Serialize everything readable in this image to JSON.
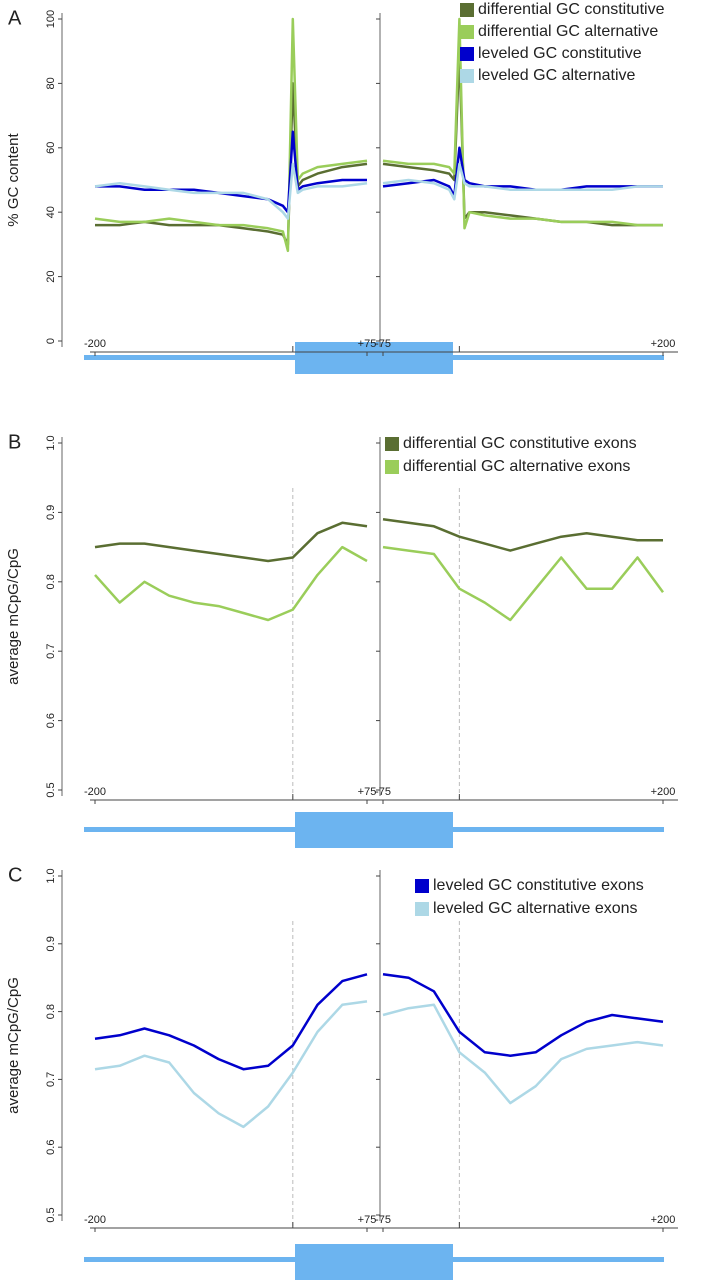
{
  "chart_data": [
    {
      "type": "line",
      "panel_label": "A",
      "ylabel": "% GC content",
      "ylim": [
        0,
        100
      ],
      "yticks": [
        0,
        20,
        40,
        60,
        80,
        100
      ],
      "legend": "upper right",
      "series": [
        {
          "name": "differential GC constitutive",
          "color": "#5a6e32"
        },
        {
          "name": "differential GC alternative",
          "color": "#9acd5a"
        },
        {
          "name": "leveled GC constitutive",
          "color": "#0000cc"
        },
        {
          "name": "leveled GC alternative",
          "color": "#add8e6"
        }
      ],
      "subplots": [
        {
          "xlim": [
            -200,
            75
          ],
          "xticks": [
            -200,
            {
              "value": 75,
              "label": "+75"
            }
          ],
          "x": [
            -200,
            -175,
            -150,
            -125,
            -100,
            -75,
            -50,
            -25,
            -10,
            -5,
            0,
            5,
            10,
            25,
            50,
            75
          ],
          "values": [
            [
              36,
              36,
              37,
              36,
              36,
              36,
              35,
              34,
              33,
              30,
              80,
              48,
              50,
              52,
              54,
              55
            ],
            [
              38,
              37,
              37,
              38,
              37,
              36,
              36,
              35,
              34,
              28,
              100,
              50,
              52,
              54,
              55,
              56
            ],
            [
              48,
              48,
              47,
              47,
              47,
              46,
              45,
              44,
              42,
              40,
              65,
              47,
              48,
              49,
              50,
              50
            ],
            [
              48,
              49,
              48,
              47,
              46,
              46,
              46,
              44,
              40,
              38,
              55,
              46,
              47,
              48,
              48,
              49
            ]
          ]
        },
        {
          "xlim": [
            -75,
            200
          ],
          "xticks": [
            -75,
            {
              "value": 200,
              "label": "+200"
            }
          ],
          "x": [
            -75,
            -50,
            -25,
            -10,
            -5,
            0,
            5,
            10,
            25,
            50,
            75,
            100,
            125,
            150,
            175,
            200
          ],
          "values": [
            [
              55,
              54,
              53,
              52,
              50,
              90,
              38,
              40,
              40,
              39,
              38,
              37,
              37,
              36,
              36,
              36
            ],
            [
              56,
              55,
              55,
              54,
              52,
              100,
              35,
              40,
              39,
              38,
              38,
              37,
              37,
              37,
              36,
              36
            ],
            [
              48,
              49,
              50,
              48,
              45,
              60,
              50,
              49,
              48,
              48,
              47,
              47,
              48,
              48,
              48,
              48
            ],
            [
              49,
              50,
              49,
              47,
              44,
              55,
              49,
              48,
              48,
              47,
              47,
              47,
              47,
              47,
              48,
              48
            ]
          ]
        }
      ]
    },
    {
      "type": "line",
      "panel_label": "B",
      "ylabel": "average mCpG/CpG",
      "ylim": [
        0.5,
        1
      ],
      "yticks": [
        0.5,
        0.6,
        0.7,
        0.8,
        0.9,
        {
          "value": 1,
          "label": "1.0"
        }
      ],
      "legend": "upper right",
      "boundary_x": 0,
      "series": [
        {
          "name": "differential GC constitutive exons",
          "color": "#5a6e32"
        },
        {
          "name": "differential GC alternative exons",
          "color": "#9acd5a"
        }
      ],
      "subplots": [
        {
          "xlim": [
            -200,
            75
          ],
          "xticks": [
            -200,
            {
              "value": 75,
              "label": "+75"
            }
          ],
          "x": [
            -200,
            -175,
            -150,
            -125,
            -100,
            -75,
            -50,
            -25,
            0,
            25,
            50,
            75
          ],
          "values": [
            [
              0.85,
              0.855,
              0.855,
              0.85,
              0.845,
              0.84,
              0.835,
              0.83,
              0.835,
              0.87,
              0.885,
              0.88
            ],
            [
              0.81,
              0.77,
              0.8,
              0.78,
              0.77,
              0.765,
              0.755,
              0.745,
              0.76,
              0.81,
              0.85,
              0.83
            ]
          ]
        },
        {
          "xlim": [
            -75,
            200
          ],
          "xticks": [
            -75,
            {
              "value": 200,
              "label": "+200"
            }
          ],
          "x": [
            -75,
            -50,
            -25,
            0,
            25,
            50,
            75,
            100,
            125,
            150,
            175,
            200
          ],
          "values": [
            [
              0.89,
              0.885,
              0.88,
              0.865,
              0.855,
              0.845,
              0.855,
              0.865,
              0.87,
              0.865,
              0.86,
              0.86
            ],
            [
              0.85,
              0.845,
              0.84,
              0.79,
              0.77,
              0.745,
              0.79,
              0.835,
              0.79,
              0.79,
              0.835,
              0.785
            ]
          ]
        }
      ]
    },
    {
      "type": "line",
      "panel_label": "C",
      "ylabel": "average mCpG/CpG",
      "ylim": [
        0.5,
        1
      ],
      "yticks": [
        0.5,
        0.6,
        0.7,
        0.8,
        0.9,
        {
          "value": 1,
          "label": "1.0"
        }
      ],
      "legend": "upper right",
      "boundary_x": 0,
      "series": [
        {
          "name": "leveled GC constitutive exons",
          "color": "#0000cc"
        },
        {
          "name": "leveled GC alternative exons",
          "color": "#add8e6"
        }
      ],
      "subplots": [
        {
          "xlim": [
            -200,
            75
          ],
          "xticks": [
            -200,
            {
              "value": 75,
              "label": "+75"
            }
          ],
          "x": [
            -200,
            -175,
            -150,
            -125,
            -100,
            -75,
            -50,
            -25,
            0,
            25,
            50,
            75
          ],
          "values": [
            [
              0.76,
              0.765,
              0.775,
              0.765,
              0.75,
              0.73,
              0.715,
              0.72,
              0.75,
              0.81,
              0.845,
              0.855
            ],
            [
              0.715,
              0.72,
              0.735,
              0.725,
              0.68,
              0.65,
              0.63,
              0.66,
              0.71,
              0.77,
              0.81,
              0.815
            ]
          ]
        },
        {
          "xlim": [
            -75,
            200
          ],
          "xticks": [
            -75,
            {
              "value": 200,
              "label": "+200"
            }
          ],
          "x": [
            -75,
            -50,
            -25,
            0,
            25,
            50,
            75,
            100,
            125,
            150,
            175,
            200
          ],
          "values": [
            [
              0.855,
              0.85,
              0.83,
              0.77,
              0.74,
              0.735,
              0.74,
              0.765,
              0.785,
              0.795,
              0.79,
              0.785
            ],
            [
              0.795,
              0.805,
              0.81,
              0.74,
              0.71,
              0.665,
              0.69,
              0.73,
              0.745,
              0.75,
              0.755,
              0.75
            ]
          ]
        }
      ]
    }
  ]
}
